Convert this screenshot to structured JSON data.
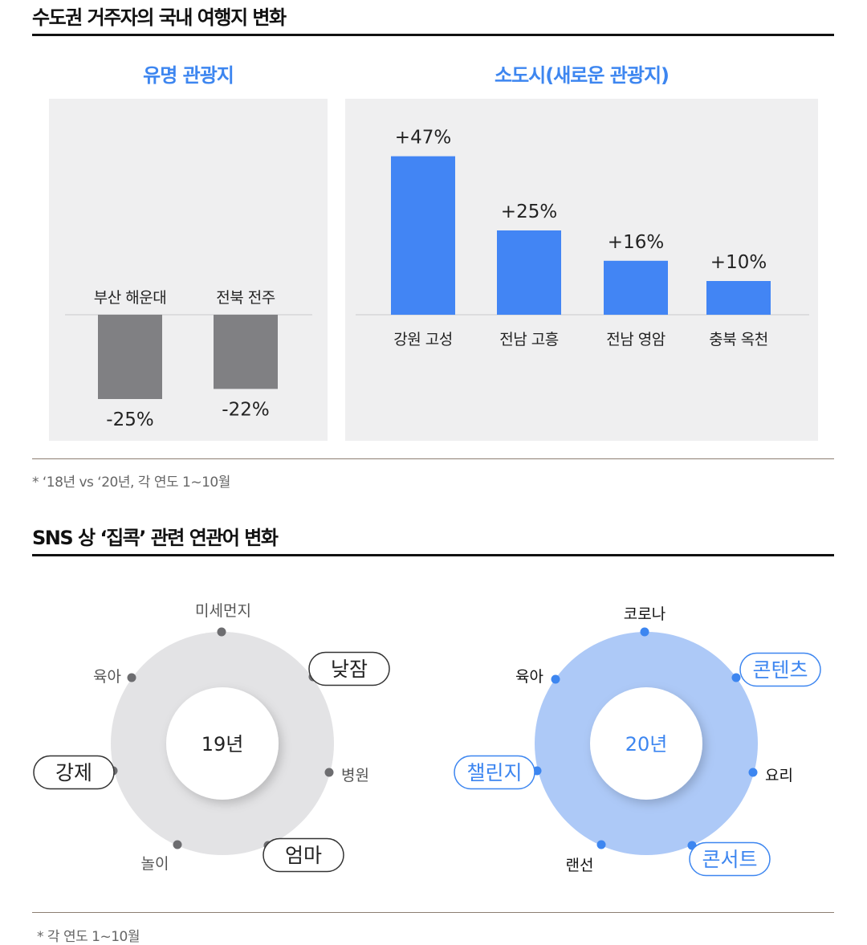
{
  "section1": {
    "title": "수도권 거주자의 국내 여행지 변화",
    "footnote": "* ‘18년 vs ‘20년, 각 연도 1~10월"
  },
  "section2": {
    "title": "SNS 상 ‘집콕’ 관련 연관어 변화",
    "footnote": "* 각 연도 1~10월"
  },
  "colors": {
    "blue": "#4285f4",
    "gray_bar": "#808083",
    "accent_text": "#3d86f0"
  },
  "chart_data": [
    {
      "type": "bar",
      "title": "유명 관광지",
      "categories": [
        "부산 해운대",
        "전북 전주"
      ],
      "values": [
        -25,
        -22
      ],
      "value_labels": [
        "-25%",
        "-22%"
      ],
      "unit": "%",
      "ylim": [
        -30,
        50
      ],
      "color": "#808083"
    },
    {
      "type": "bar",
      "title": "소도시(새로운 관광지)",
      "categories": [
        "강원 고성",
        "전남 고흥",
        "전남 영암",
        "충북 옥천"
      ],
      "values": [
        47,
        25,
        16,
        10
      ],
      "value_labels": [
        "+47%",
        "+25%",
        "+16%",
        "+10%"
      ],
      "unit": "%",
      "ylim": [
        -30,
        50
      ],
      "color": "#4285f4"
    }
  ],
  "rings": [
    {
      "center_label": "19년",
      "items": [
        {
          "label": "미세먼지",
          "highlight": false
        },
        {
          "label": "낮잠",
          "highlight": true
        },
        {
          "label": "병원",
          "highlight": false
        },
        {
          "label": "엄마",
          "highlight": true
        },
        {
          "label": "놀이",
          "highlight": false
        },
        {
          "label": "강제",
          "highlight": true
        },
        {
          "label": "육아",
          "highlight": false
        }
      ]
    },
    {
      "center_label": "20년",
      "items": [
        {
          "label": "코로나",
          "highlight": false
        },
        {
          "label": "콘텐츠",
          "highlight": true
        },
        {
          "label": "요리",
          "highlight": false
        },
        {
          "label": "콘서트",
          "highlight": true
        },
        {
          "label": "랜선",
          "highlight": false
        },
        {
          "label": "챌린지",
          "highlight": true
        },
        {
          "label": "육아",
          "highlight": false
        }
      ]
    }
  ]
}
